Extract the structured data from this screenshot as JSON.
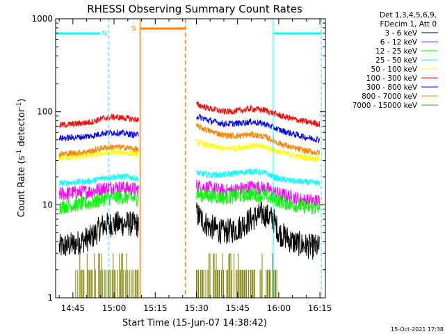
{
  "chart_data": {
    "type": "line",
    "title": "RHESSI Observing Summary Count Rates",
    "xlabel": "Start Time (15-Jun-07 14:38:42)",
    "ylabel_main": "Count Rate (s",
    "ylabel_sup1": "-1",
    "ylabel_mid": " detector",
    "ylabel_sup2": "-1",
    "ylabel_end": ")",
    "y_scale": "log",
    "ylim": [
      1,
      1000
    ],
    "xlim": [
      "14:38:42",
      "16:17:00"
    ],
    "x_ticks": [
      "14:45",
      "15:00",
      "15:15",
      "15:30",
      "15:45",
      "16:00",
      "16:15"
    ],
    "y_ticks": [
      "1",
      "10",
      "100",
      "1000"
    ],
    "legend_header": [
      "Det 1,3,4,5,6,9,",
      "FDecim 1, Att 0"
    ],
    "legend_placement": "right",
    "series": [
      {
        "name": "3 - 6 keV",
        "color": "#000000",
        "segments": [
          {
            "x": [
              "14:40",
              "14:46",
              "14:52",
              "14:56",
              "15:00",
              "15:05",
              "15:09"
            ],
            "y": [
              3.5,
              3.8,
              4.5,
              6.0,
              6.2,
              6.3,
              6.0
            ]
          },
          {
            "x": [
              "15:30",
              "15:34",
              "15:40",
              "15:45",
              "15:50",
              "15:54",
              "15:58",
              "16:00",
              "16:05",
              "16:10",
              "16:15"
            ],
            "y": [
              8.0,
              6.0,
              5.0,
              5.5,
              7.0,
              8.0,
              7.0,
              5.0,
              4.0,
              3.6,
              3.5
            ]
          }
        ]
      },
      {
        "name": "6 - 12 keV",
        "color": "#ff00ff",
        "segments": [
          {
            "x": [
              "14:40",
              "14:46",
              "14:52",
              "14:56",
              "15:00",
              "15:05",
              "15:09"
            ],
            "y": [
              13,
              13.5,
              14,
              15,
              15.5,
              15,
              14.5
            ]
          },
          {
            "x": [
              "15:30",
              "15:35",
              "15:40",
              "15:45",
              "15:50",
              "15:55",
              "16:00",
              "16:05",
              "16:10",
              "16:15"
            ],
            "y": [
              16,
              15,
              14,
              14.5,
              15.5,
              15,
              13,
              12,
              11,
              11
            ]
          }
        ]
      },
      {
        "name": "12 - 25 keV",
        "color": "#00ff00",
        "segments": [
          {
            "x": [
              "14:40",
              "14:46",
              "14:52",
              "14:56",
              "15:00",
              "15:05",
              "15:09"
            ],
            "y": [
              9.5,
              10,
              10.5,
              11.5,
              12,
              12,
              11.5
            ]
          },
          {
            "x": [
              "15:30",
              "15:35",
              "15:40",
              "15:45",
              "15:50",
              "15:55",
              "16:00",
              "16:05",
              "16:10",
              "16:15"
            ],
            "y": [
              13,
              12.5,
              12,
              12.5,
              13,
              12.5,
              11,
              10,
              9.5,
              9
            ]
          }
        ]
      },
      {
        "name": "25 - 50 keV",
        "color": "#00ffff",
        "segments": [
          {
            "x": [
              "14:40",
              "14:46",
              "14:52",
              "14:56",
              "15:00",
              "15:05",
              "15:09"
            ],
            "y": [
              17,
              17.5,
              18,
              19.5,
              20,
              20,
              19
            ]
          },
          {
            "x": [
              "15:30",
              "15:35",
              "15:40",
              "15:45",
              "15:50",
              "15:55",
              "16:00",
              "16:05",
              "16:10",
              "16:15"
            ],
            "y": [
              22,
              21,
              21,
              22,
              23,
              22,
              19,
              18,
              17.5,
              17
            ]
          }
        ]
      },
      {
        "name": "50 - 100 keV",
        "color": "#ffff00",
        "segments": [
          {
            "x": [
              "14:40",
              "14:46",
              "14:52",
              "14:56",
              "15:00",
              "15:05",
              "15:09"
            ],
            "y": [
              32,
              33,
              34,
              36,
              37,
              36,
              35
            ]
          },
          {
            "x": [
              "15:30",
              "15:35",
              "15:40",
              "15:45",
              "15:50",
              "15:55",
              "16:00",
              "16:05",
              "16:10",
              "16:15"
            ],
            "y": [
              47,
              43,
              40,
              41,
              43,
              42,
              37,
              34,
              32,
              31
            ]
          }
        ]
      },
      {
        "name": "100 - 300 keV",
        "color": "#ff0000",
        "segments": [
          {
            "x": [
              "14:40",
              "14:46",
              "14:52",
              "14:56",
              "15:00",
              "15:05",
              "15:09"
            ],
            "y": [
              72,
              74,
              78,
              85,
              88,
              85,
              82
            ]
          },
          {
            "x": [
              "15:30",
              "15:35",
              "15:40",
              "15:45",
              "15:50",
              "15:55",
              "16:00",
              "16:05",
              "16:10",
              "16:15"
            ],
            "y": [
              120,
              108,
              100,
              102,
              108,
              104,
              92,
              84,
              78,
              74
            ]
          }
        ]
      },
      {
        "name": "300 - 800 keV",
        "color": "#0000ff",
        "segments": [
          {
            "x": [
              "14:40",
              "14:46",
              "14:52",
              "14:56",
              "15:00",
              "15:05",
              "15:09"
            ],
            "y": [
              52,
              53,
              55,
              59,
              60,
              58,
              56
            ]
          },
          {
            "x": [
              "15:30",
              "15:35",
              "15:40",
              "15:45",
              "15:50",
              "15:55",
              "16:00",
              "16:05",
              "16:10",
              "16:15"
            ],
            "y": [
              90,
              80,
              74,
              75,
              78,
              74,
              64,
              58,
              53,
              50
            ]
          }
        ]
      },
      {
        "name": "800 - 7000 keV",
        "color": "#ff8000",
        "segments": [
          {
            "x": [
              "14:40",
              "14:46",
              "14:52",
              "14:56",
              "15:00",
              "15:05",
              "15:09"
            ],
            "y": [
              35,
              36,
              38,
              41,
              42,
              41,
              39
            ]
          },
          {
            "x": [
              "15:30",
              "15:35",
              "15:40",
              "15:45",
              "15:50",
              "15:55",
              "16:00",
              "16:05",
              "16:10",
              "16:15"
            ],
            "y": [
              70,
              62,
              56,
              55,
              57,
              54,
              46,
              41,
              38,
              36
            ]
          }
        ]
      },
      {
        "name": "7000 - 15000 keV",
        "color": "#808000",
        "segments": [
          {
            "x": [
              "14:46",
              "14:55",
              "15:05",
              "15:09"
            ],
            "y": [
              2,
              2,
              2,
              2
            ]
          },
          {
            "x": [
              "15:30",
              "15:40",
              "15:50",
              "16:00"
            ],
            "y": [
              2,
              2,
              2,
              2
            ]
          }
        ]
      }
    ],
    "annotations": [
      {
        "label": "N",
        "type": "night",
        "color": "#00ffff",
        "x_start": "14:38:42",
        "x_end": "14:58:00"
      },
      {
        "label": "",
        "type": "night",
        "color": "#00ffff",
        "x_start": "15:58:00",
        "x_end": "16:15:30"
      },
      {
        "label": "S",
        "type": "saa",
        "color": "#ff8000",
        "x_start": "15:09:30",
        "x_end": "15:26:00"
      }
    ]
  },
  "footer_date": "15-Oct-2021 17:38"
}
